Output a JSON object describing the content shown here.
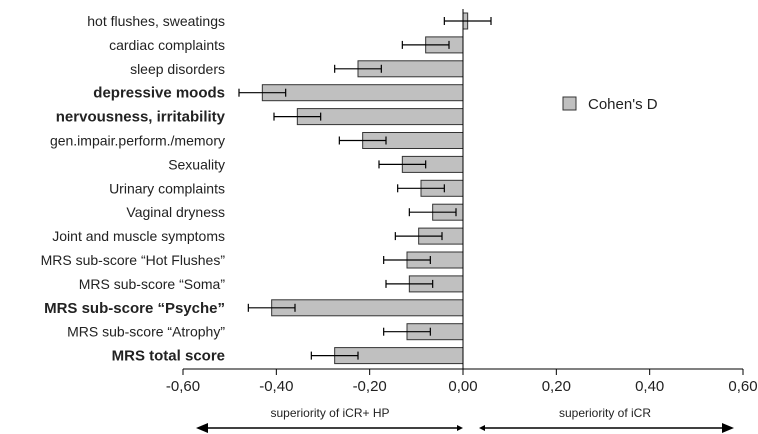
{
  "chart_data": {
    "type": "bar",
    "orientation": "horizontal",
    "categories": [
      "hot flushes, sweatings",
      "cardiac complaints",
      "sleep disorders",
      "depressive moods",
      "nervousness, irritability",
      "gen.impair.perform./memory",
      "Sexuality",
      "Urinary complaints",
      "Vaginal dryness",
      "Joint and muscle symptoms",
      "MRS sub-score “Hot Flushes”",
      "MRS sub-score “Soma”",
      "MRS sub-score “Psyche”",
      "MRS sub-score “Atrophy”",
      "MRS total score"
    ],
    "bold_categories": [
      "depressive moods",
      "nervousness, irritability",
      "MRS sub-score “Psyche”",
      "MRS total score"
    ],
    "series": [
      {
        "name": "Cohen's D",
        "values": [
          0.01,
          -0.08,
          -0.225,
          -0.43,
          -0.355,
          -0.215,
          -0.13,
          -0.09,
          -0.065,
          -0.095,
          -0.12,
          -0.115,
          -0.41,
          -0.12,
          -0.275
        ],
        "error": [
          0.05,
          0.05,
          0.05,
          0.05,
          0.05,
          0.05,
          0.05,
          0.05,
          0.05,
          0.05,
          0.05,
          0.05,
          0.05,
          0.05,
          0.05
        ]
      }
    ],
    "xlim": [
      -0.6,
      0.6
    ],
    "xticks": [
      -0.6,
      -0.4,
      -0.2,
      0.0,
      0.2,
      0.4,
      0.6
    ],
    "xtick_labels": [
      "-0,60",
      "-0,40",
      "-0,20",
      "0,00",
      "0,20",
      "0,40",
      "0,60"
    ],
    "legend": {
      "label": "Cohen's D",
      "placement": "right"
    },
    "grid": false,
    "annotations": {
      "left_arrow": "superiority of iCR+ HP",
      "right_arrow": "superiority of iCR"
    },
    "colors": {
      "bar_fill": "#c0c0c0",
      "bar_stroke": "#333333",
      "error": "#000000"
    }
  }
}
